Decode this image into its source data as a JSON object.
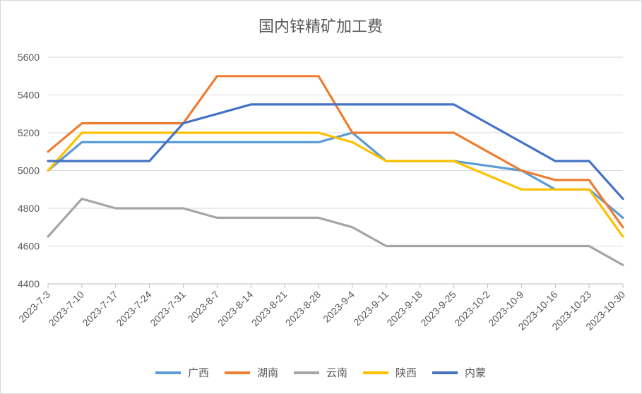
{
  "chart_data": {
    "type": "line",
    "title": "国内锌精矿加工费",
    "xlabel": "",
    "ylabel": "",
    "ylim": [
      4400,
      5600
    ],
    "ytick_step": 200,
    "yticks": [
      "4400",
      "4600",
      "4800",
      "5000",
      "5200",
      "5400",
      "5600"
    ],
    "grid": true,
    "legend_position": "bottom",
    "categories": [
      "2023-7-3",
      "2023-7-10",
      "2023-7-17",
      "2023-7-24",
      "2023-7-31",
      "2023-8-7",
      "2023-8-14",
      "2023-8-21",
      "2023-8-28",
      "2023-9-4",
      "2023-9-11",
      "2023-9-18",
      "2023-9-25",
      "2023-10-2",
      "2023-10-9",
      "2023-10-16",
      "2023-10-23",
      "2023-10-30"
    ],
    "series": [
      {
        "name": "广西",
        "color": "#5B9BD5",
        "values": [
          5000,
          5150,
          5150,
          5150,
          5150,
          5150,
          5150,
          5150,
          5150,
          5200,
          5050,
          5050,
          5050,
          5025,
          5000,
          4900,
          4900,
          4750
        ]
      },
      {
        "name": "湖南",
        "color": "#ED7D31",
        "values": [
          5100,
          5250,
          5250,
          5250,
          5250,
          5500,
          5500,
          5500,
          5500,
          5200,
          5200,
          5200,
          5200,
          5100,
          5000,
          4950,
          4950,
          4700
        ]
      },
      {
        "name": "云南",
        "color": "#A5A5A5",
        "values": [
          4650,
          4850,
          4800,
          4800,
          4800,
          4750,
          4750,
          4750,
          4750,
          4700,
          4600,
          4600,
          4600,
          4600,
          4600,
          4600,
          4600,
          4500
        ]
      },
      {
        "name": "陕西",
        "color": "#FFC000",
        "values": [
          5000,
          5200,
          5200,
          5200,
          5200,
          5200,
          5200,
          5200,
          5200,
          5150,
          5050,
          5050,
          5050,
          4975,
          4900,
          4900,
          4900,
          4650
        ]
      },
      {
        "name": "内蒙",
        "color": "#4472C4",
        "values": [
          5050,
          5050,
          5050,
          5050,
          5250,
          5300,
          5350,
          5350,
          5350,
          5350,
          5350,
          5350,
          5350,
          5250,
          5150,
          5050,
          5050,
          4850
        ]
      }
    ]
  }
}
